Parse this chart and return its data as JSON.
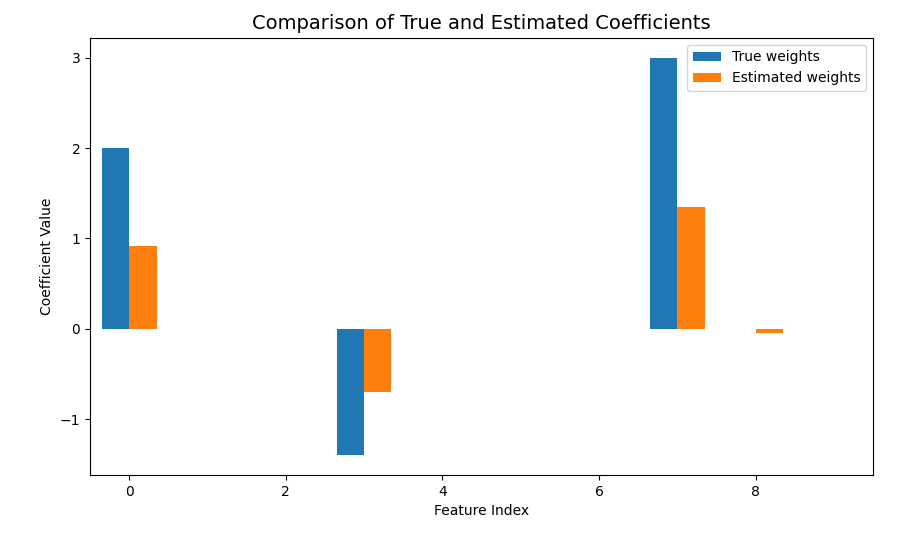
{
  "title": "Comparison of True and Estimated Coefficients",
  "xlabel": "Feature Index",
  "ylabel": "Coefficient Value",
  "n_features": 10,
  "true_weights": [
    2.0,
    0.0,
    0.0,
    -1.4,
    0.0,
    0.0,
    0.0,
    3.0,
    0.0,
    0.0
  ],
  "estimated_weights": [
    0.92,
    0.0,
    0.0,
    -0.7,
    0.0,
    0.0,
    0.0,
    1.35,
    -0.05,
    0.0
  ],
  "true_color": "#1f77b4",
  "estimated_color": "#ff7f0e",
  "bar_width": 0.35,
  "legend_labels": [
    "True weights",
    "Estimated weights"
  ],
  "xlim": [
    -0.5,
    9.5
  ],
  "xticks": [
    0,
    2,
    4,
    6,
    8
  ],
  "background_color": "#ffffff",
  "title_fontsize": 14
}
